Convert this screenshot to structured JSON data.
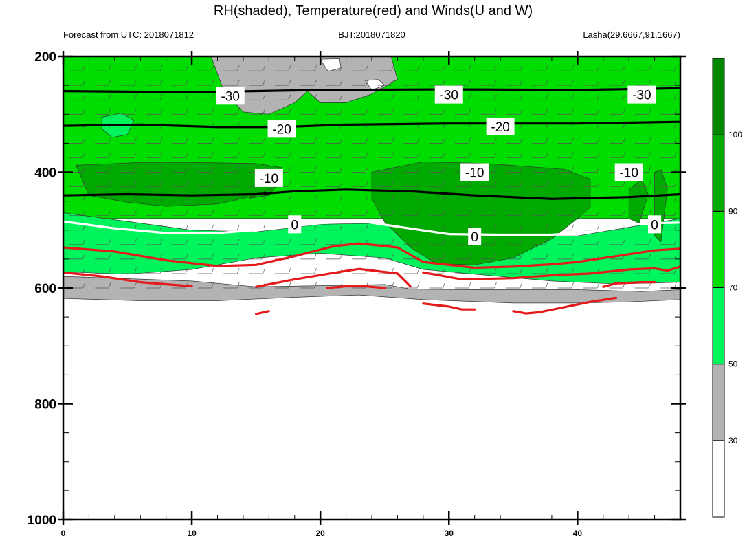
{
  "chart_data": {
    "type": "heatmap",
    "title": "RH(shaded), Temperature(red) and Winds(U and W)",
    "left_subtitle": "Forecast from UTC: 2018071812",
    "center_subtitle": "BJT:2018071820",
    "right_subtitle": "Lasha(29.6667,91.1667)",
    "xlabel": "",
    "ylabel": "",
    "xlim": [
      0,
      48
    ],
    "ylim": [
      1000,
      200
    ],
    "y_axis_reversed": true,
    "x_ticks": [
      "0",
      "10",
      "20",
      "30",
      "40"
    ],
    "y_ticks": [
      "200",
      "400",
      "600",
      "800",
      "1000"
    ],
    "colorbar": {
      "position": "right",
      "levels": [
        "30",
        "50",
        "70",
        "90",
        "100"
      ],
      "colors": [
        "#ffffff",
        "#b3b3b3",
        "#00f55c",
        "#00dd00",
        "#00aa00",
        "#008800"
      ]
    },
    "temperature_contours": [
      {
        "label": "-30",
        "color": "#000000",
        "points": [
          [
            0,
            260
          ],
          [
            10,
            262
          ],
          [
            20,
            258
          ],
          [
            30,
            257
          ],
          [
            40,
            258
          ],
          [
            48,
            255
          ]
        ]
      },
      {
        "label": "-20",
        "color": "#000000",
        "points": [
          [
            0,
            320
          ],
          [
            6,
            318
          ],
          [
            12,
            322
          ],
          [
            17,
            322
          ],
          [
            22,
            318
          ],
          [
            30,
            316
          ],
          [
            40,
            316
          ],
          [
            48,
            313
          ]
        ]
      },
      {
        "label": "-10",
        "color": "#000000",
        "points": [
          [
            0,
            440
          ],
          [
            5,
            438
          ],
          [
            10,
            440
          ],
          [
            15,
            438
          ],
          [
            18,
            433
          ],
          [
            22,
            430
          ],
          [
            27,
            433
          ],
          [
            32,
            440
          ],
          [
            38,
            446
          ],
          [
            44,
            443
          ],
          [
            48,
            438
          ]
        ]
      },
      {
        "label": "0",
        "color": "#ffffff",
        "points": [
          [
            0,
            485
          ],
          [
            4,
            497
          ],
          [
            8,
            505
          ],
          [
            12,
            505
          ],
          [
            16,
            498
          ],
          [
            20,
            488
          ],
          [
            23,
            484
          ],
          [
            26,
            494
          ],
          [
            30,
            507
          ],
          [
            34,
            508
          ],
          [
            38,
            508
          ],
          [
            41,
            503
          ],
          [
            43,
            493
          ],
          [
            46,
            488
          ],
          [
            48,
            487
          ]
        ]
      },
      {
        "label": "",
        "color": "#e41a1c",
        "points": [
          [
            0,
            530
          ],
          [
            4,
            537
          ],
          [
            8,
            552
          ],
          [
            12,
            562
          ],
          [
            15,
            560
          ],
          [
            18,
            545
          ],
          [
            21,
            528
          ],
          [
            23,
            523
          ],
          [
            26,
            530
          ],
          [
            28,
            555
          ],
          [
            32,
            565
          ],
          [
            35,
            563
          ],
          [
            38,
            559
          ],
          [
            40,
            555
          ],
          [
            43,
            545
          ],
          [
            46,
            535
          ],
          [
            48,
            532
          ]
        ]
      },
      {
        "label": "",
        "color": "#e41a1c",
        "points": [
          [
            0,
            573
          ],
          [
            3,
            580
          ],
          [
            6,
            590
          ],
          [
            10,
            597
          ]
        ]
      },
      {
        "label": "",
        "color": "#e41a1c",
        "points": [
          [
            15,
            598
          ],
          [
            18,
            585
          ],
          [
            21,
            574
          ],
          [
            23,
            567
          ],
          [
            26,
            575
          ],
          [
            27,
            597
          ]
        ]
      },
      {
        "label": "",
        "color": "#e41a1c",
        "points": [
          [
            28,
            573
          ],
          [
            31,
            585
          ],
          [
            35,
            583
          ],
          [
            38,
            578
          ],
          [
            41,
            575
          ],
          [
            44,
            568
          ],
          [
            46,
            566
          ],
          [
            47,
            570
          ],
          [
            48,
            563
          ]
        ]
      },
      {
        "label": "",
        "color": "#e41a1c",
        "points": [
          [
            20.5,
            600
          ],
          [
            22,
            597
          ],
          [
            23.5,
            597
          ],
          [
            25,
            600
          ]
        ]
      },
      {
        "label": "",
        "color": "#e41a1c",
        "points": [
          [
            42,
            598
          ],
          [
            43,
            592
          ],
          [
            45,
            590
          ],
          [
            46,
            590
          ]
        ]
      },
      {
        "label": "",
        "color": "#e41a1c",
        "points": [
          [
            15,
            645
          ],
          [
            16,
            640
          ]
        ]
      },
      {
        "label": "",
        "color": "#e41a1c",
        "points": [
          [
            28,
            627
          ],
          [
            30,
            632
          ],
          [
            31,
            637
          ],
          [
            32,
            637
          ]
        ]
      },
      {
        "label": "",
        "color": "#e41a1c",
        "points": [
          [
            35,
            640
          ],
          [
            36,
            644
          ],
          [
            37,
            642
          ],
          [
            39,
            633
          ],
          [
            41,
            624
          ],
          [
            43,
            617
          ]
        ]
      }
    ],
    "contour_labels": [
      {
        "text": "-30",
        "x": 13,
        "y": 268
      },
      {
        "text": "-30",
        "x": 30,
        "y": 266
      },
      {
        "text": "-30",
        "x": 45,
        "y": 266
      },
      {
        "text": "-20",
        "x": 17,
        "y": 325
      },
      {
        "text": "-20",
        "x": 34,
        "y": 321
      },
      {
        "text": "-10",
        "x": 16,
        "y": 410
      },
      {
        "text": "-10",
        "x": 32,
        "y": 400
      },
      {
        "text": "-10",
        "x": 44,
        "y": 400
      },
      {
        "text": "0",
        "x": 18,
        "y": 490
      },
      {
        "text": "0",
        "x": 32,
        "y": 511
      },
      {
        "text": "0",
        "x": 46,
        "y": 490
      }
    ],
    "rh_regions": [
      {
        "class": "70-90",
        "points": [
          [
            0,
            200
          ],
          [
            48,
            200
          ],
          [
            48,
            480
          ],
          [
            0,
            480
          ]
        ]
      },
      {
        "class": "50-70",
        "points": [
          [
            0,
            470
          ],
          [
            5,
            485
          ],
          [
            10,
            500
          ],
          [
            15,
            503
          ],
          [
            20,
            490
          ],
          [
            25,
            488
          ],
          [
            30,
            510
          ],
          [
            40,
            510
          ],
          [
            48,
            480
          ],
          [
            48,
            590
          ],
          [
            43,
            593
          ],
          [
            38,
            588
          ],
          [
            33,
            578
          ],
          [
            28,
            568
          ],
          [
            25,
            548
          ],
          [
            20,
            540
          ],
          [
            15,
            548
          ],
          [
            10,
            568
          ],
          [
            5,
            576
          ],
          [
            0,
            572
          ]
        ]
      },
      {
        "class": "90-100",
        "points": [
          [
            1.5,
            393
          ],
          [
            3,
            392
          ],
          [
            4.5,
            405
          ],
          [
            3,
            430
          ],
          [
            2,
            428
          ]
        ]
      },
      {
        "class": "90-100",
        "points": [
          [
            5,
            410
          ],
          [
            6,
            400
          ],
          [
            7,
            408
          ],
          [
            6.5,
            438
          ],
          [
            5.5,
            440
          ]
        ]
      },
      {
        "class": "90-100",
        "points": [
          [
            10,
            403
          ],
          [
            11.5,
            400
          ],
          [
            12.5,
            406
          ],
          [
            12,
            437
          ],
          [
            10.5,
            442
          ]
        ]
      },
      {
        "class": "90-100",
        "points": [
          [
            14,
            406
          ],
          [
            16,
            403
          ],
          [
            17,
            412
          ],
          [
            16,
            440
          ],
          [
            14.5,
            445
          ]
        ]
      },
      {
        "class": "90-100",
        "points": [
          [
            1,
            388
          ],
          [
            6,
            383
          ],
          [
            10,
            383
          ],
          [
            15,
            385
          ],
          [
            17,
            392
          ],
          [
            17,
            420
          ],
          [
            15,
            440
          ],
          [
            12,
            455
          ],
          [
            8,
            459
          ],
          [
            5,
            452
          ],
          [
            2,
            440
          ]
        ]
      },
      {
        "class": "90-100",
        "points": [
          [
            24,
            400
          ],
          [
            28,
            382
          ],
          [
            33,
            385
          ],
          [
            39,
            395
          ],
          [
            41,
            412
          ],
          [
            41,
            460
          ],
          [
            40,
            480
          ],
          [
            38,
            515
          ],
          [
            35,
            548
          ],
          [
            32,
            560
          ],
          [
            29,
            558
          ],
          [
            27,
            530
          ],
          [
            25,
            486
          ],
          [
            24,
            445
          ]
        ]
      },
      {
        "class": "90-100",
        "points": [
          [
            44,
            430
          ],
          [
            45,
            412
          ],
          [
            45.5,
            438
          ],
          [
            44.8,
            488
          ],
          [
            44,
            480
          ]
        ]
      },
      {
        "class": "90-100",
        "points": [
          [
            46,
            400
          ],
          [
            46.5,
            396
          ],
          [
            47,
            428
          ],
          [
            46.5,
            520
          ],
          [
            46,
            510
          ]
        ]
      },
      {
        "class": "50-70",
        "points": [
          [
            3,
            305
          ],
          [
            4.5,
            298
          ],
          [
            5.5,
            310
          ],
          [
            5,
            335
          ],
          [
            3.8,
            340
          ],
          [
            3,
            325
          ]
        ]
      },
      {
        "class": "30-50",
        "points": [
          [
            0,
            580
          ],
          [
            10,
            588
          ],
          [
            15,
            598
          ],
          [
            20,
            596
          ],
          [
            25,
            594
          ],
          [
            27,
            602
          ],
          [
            33,
            603
          ],
          [
            40,
            603
          ],
          [
            45,
            606
          ],
          [
            48,
            603
          ],
          [
            48,
            620
          ],
          [
            44,
            624
          ],
          [
            40,
            626
          ],
          [
            35,
            626
          ],
          [
            28,
            620
          ],
          [
            23,
            612
          ],
          [
            18,
            616
          ],
          [
            12,
            622
          ],
          [
            6,
            622
          ],
          [
            0,
            618
          ]
        ]
      },
      {
        "class": "30-50",
        "points": [
          [
            11.5,
            200
          ],
          [
            16,
            200
          ],
          [
            20,
            200
          ],
          [
            25.5,
            200
          ],
          [
            26,
            240
          ],
          [
            24,
            265
          ],
          [
            22,
            280
          ],
          [
            20,
            280
          ],
          [
            19,
            260
          ],
          [
            18,
            280
          ],
          [
            16,
            300
          ],
          [
            14,
            296
          ],
          [
            12.5,
            260
          ]
        ]
      },
      {
        "class": "0-30",
        "points": [
          [
            20,
            205
          ],
          [
            21.5,
            204
          ],
          [
            21.6,
            220
          ],
          [
            20.6,
            226
          ]
        ]
      },
      {
        "class": "0-30",
        "points": [
          [
            23.5,
            242
          ],
          [
            24.5,
            240
          ],
          [
            25,
            250
          ],
          [
            24,
            258
          ]
        ]
      }
    ],
    "wind_barbs": {
      "rows": [
        200,
        225,
        250,
        275,
        300,
        325,
        350,
        375,
        400,
        425,
        450,
        475,
        500,
        525,
        550,
        575,
        600
      ],
      "x_step": 2
    }
  }
}
